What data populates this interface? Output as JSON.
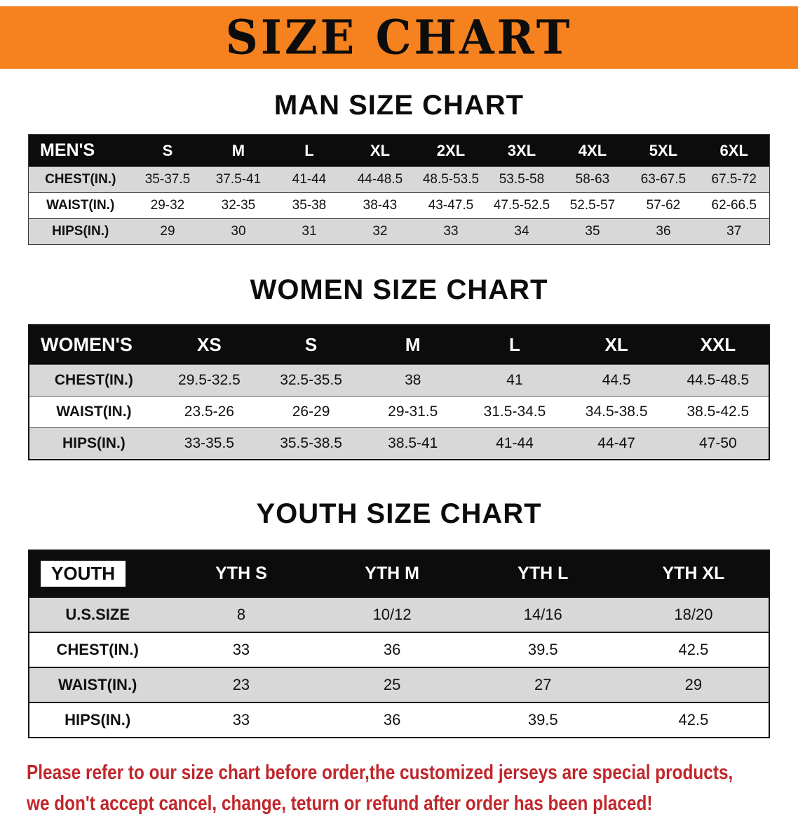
{
  "banner": {
    "title": "SIZE CHART",
    "bg_color": "#f5821f",
    "text_color": "#0c0c0c"
  },
  "sections": [
    {
      "id": "men",
      "heading": "MAN SIZE CHART",
      "table": {
        "header": [
          "MEN'S",
          "S",
          "M",
          "L",
          "XL",
          "2XL",
          "3XL",
          "4XL",
          "5XL",
          "6XL"
        ],
        "rows": [
          [
            "CHEST(IN.)",
            "35-37.5",
            "37.5-41",
            "41-44",
            "44-48.5",
            "48.5-53.5",
            "53.5-58",
            "58-63",
            "63-67.5",
            "67.5-72"
          ],
          [
            "WAIST(IN.)",
            "29-32",
            "32-35",
            "35-38",
            "38-43",
            "43-47.5",
            "47.5-52.5",
            "52.5-57",
            "57-62",
            "62-66.5"
          ],
          [
            "HIPS(IN.)",
            "29",
            "30",
            "31",
            "32",
            "33",
            "34",
            "35",
            "36",
            "37"
          ]
        ]
      }
    },
    {
      "id": "women",
      "heading": "WOMEN SIZE CHART",
      "table": {
        "header": [
          "WOMEN'S",
          "XS",
          "S",
          "M",
          "L",
          "XL",
          "XXL"
        ],
        "rows": [
          [
            "CHEST(IN.)",
            "29.5-32.5",
            "32.5-35.5",
            "38",
            "41",
            "44.5",
            "44.5-48.5"
          ],
          [
            "WAIST(IN.)",
            "23.5-26",
            "26-29",
            "29-31.5",
            "31.5-34.5",
            "34.5-38.5",
            "38.5-42.5"
          ],
          [
            "HIPS(IN.)",
            "33-35.5",
            "35.5-38.5",
            "38.5-41",
            "41-44",
            "44-47",
            "47-50"
          ]
        ]
      }
    },
    {
      "id": "youth",
      "heading": "YOUTH SIZE CHART",
      "table": {
        "header": [
          "YOUTH",
          "YTH S",
          "YTH M",
          "YTH L",
          "YTH XL"
        ],
        "rows": [
          [
            "U.S.SIZE",
            "8",
            "10/12",
            "14/16",
            "18/20"
          ],
          [
            "CHEST(IN.)",
            "33",
            "36",
            "39.5",
            "42.5"
          ],
          [
            "WAIST(IN.)",
            "23",
            "25",
            "27",
            "29"
          ],
          [
            "HIPS(IN.)",
            "33",
            "36",
            "39.5",
            "42.5"
          ]
        ]
      }
    }
  ],
  "footer": {
    "line1": "Please refer to our size chart before order,the customized jerseys are special products,",
    "line2": "we don't accept cancel, change, teturn or refund after order has been placed!",
    "text_color": "#c0262b"
  },
  "colors": {
    "table_header_bg": "#0c0c0c",
    "row_stripe": "#d8d8d8"
  }
}
